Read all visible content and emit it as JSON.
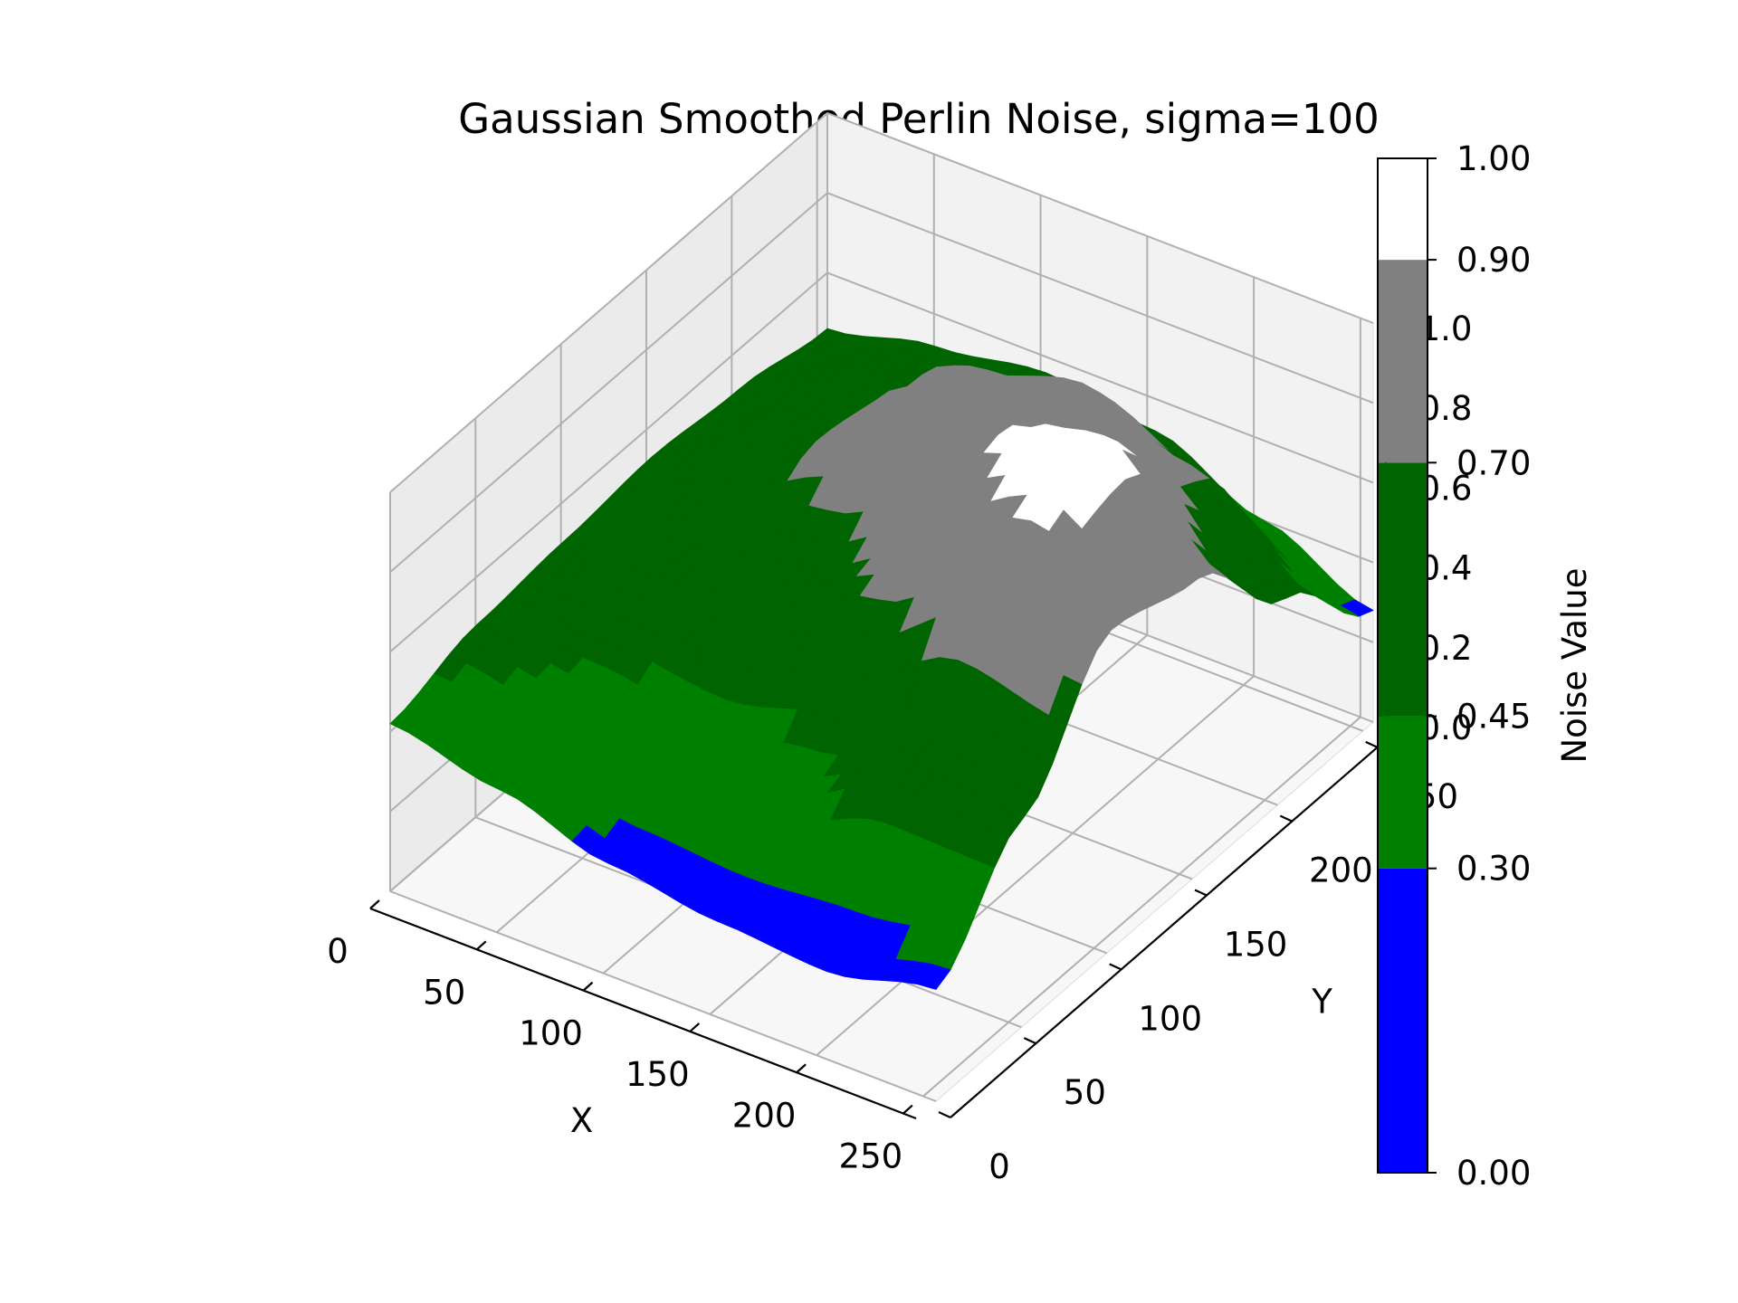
{
  "chart_data": {
    "type": "surface3d",
    "title": "Gaussian Smoothed Perlin Noise, sigma=100",
    "xlabel": "X",
    "ylabel": "Y",
    "zlabel": "",
    "xlim": [
      0,
      256
    ],
    "ylim": [
      0,
      256
    ],
    "zlim": [
      0,
      1
    ],
    "x_ticks": [
      "0",
      "50",
      "100",
      "150",
      "200",
      "250"
    ],
    "y_ticks": [
      "0",
      "50",
      "100",
      "150",
      "200",
      "250"
    ],
    "z_ticks": [
      "0.0",
      "0.2",
      "0.4",
      "0.6",
      "0.8",
      "1.0"
    ],
    "grid": true,
    "colorbar": {
      "label": "Noise Value",
      "boundaries": [
        0.0,
        0.3,
        0.45,
        0.7,
        0.9,
        1.0
      ],
      "tick_labels": [
        "0.00",
        "0.30",
        "0.45",
        "0.70",
        "0.90",
        "1.00"
      ],
      "colors": [
        "#0000ff",
        "#008000",
        "#006400",
        "#808080",
        "#ffffff"
      ]
    },
    "surface": {
      "x": [
        0,
        51.2,
        102.4,
        153.6,
        204.8,
        256
      ],
      "y": [
        0,
        51.2,
        102.4,
        153.6,
        204.8,
        256
      ],
      "z_rows_by_y": [
        [
          0.42,
          0.36,
          0.28,
          0.24,
          0.22,
          0.28
        ],
        [
          0.48,
          0.44,
          0.38,
          0.42,
          0.55,
          0.52
        ],
        [
          0.5,
          0.55,
          0.6,
          0.72,
          0.88,
          0.8
        ],
        [
          0.52,
          0.65,
          0.78,
          0.9,
          0.98,
          0.74
        ],
        [
          0.5,
          0.62,
          0.74,
          0.82,
          0.72,
          0.5
        ],
        [
          0.46,
          0.52,
          0.56,
          0.52,
          0.4,
          0.28
        ]
      ]
    }
  }
}
